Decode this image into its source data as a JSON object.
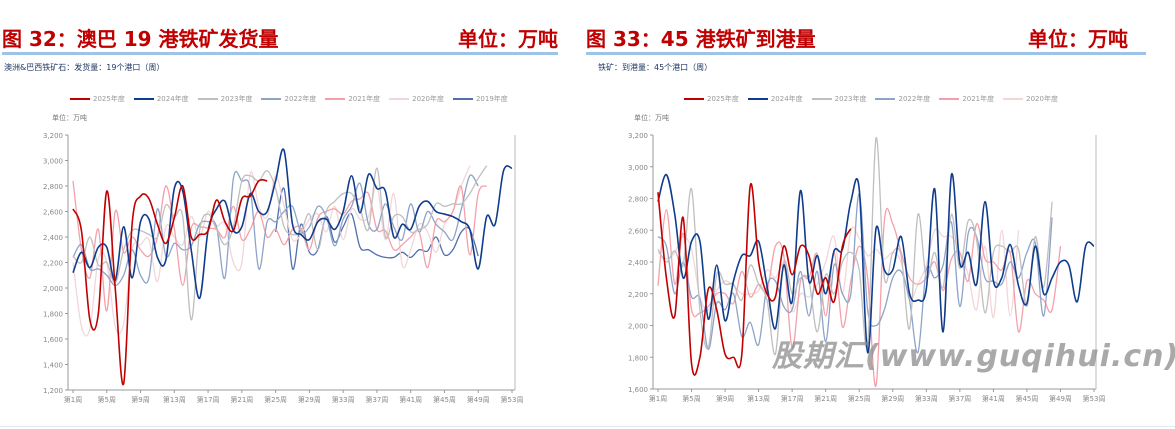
{
  "watermark": "股期汇(www.guqihui.cn)",
  "colors": {
    "2025年度": "#c00000",
    "2024年度": "#0f3c8c",
    "2023年度": "#bfbfbf",
    "2022年度": "#8ea3c8",
    "2021年度": "#f4a0aa",
    "2020年度": "#f2d6d8",
    "2019年度": "#4f6fad"
  },
  "chart_data": [
    {
      "type": "line",
      "figure_title": "图 32：澳巴 19 港铁矿发货量",
      "unit_title": "单位：万吨",
      "title": "澳洲&巴西铁矿石：发货量：19个港口（周）",
      "ylabel": "单位：万吨",
      "ylim": [
        1200,
        3200
      ],
      "yticks": [
        "1,200",
        "1,400",
        "1,600",
        "1,800",
        "2,000",
        "2,200",
        "2,400",
        "2,600",
        "2,800",
        "3,000",
        "3,200"
      ],
      "ytick_values": [
        1200,
        1400,
        1600,
        1800,
        2000,
        2200,
        2400,
        2600,
        2800,
        3000,
        3200
      ],
      "xlim": [
        1,
        53
      ],
      "xticks": [
        "第1周",
        "第5周",
        "第9周",
        "第13周",
        "第17周",
        "第21周",
        "第25周",
        "第29周",
        "第33周",
        "第37周",
        "第41周",
        "第45周",
        "第49周",
        "第53周"
      ],
      "xtick_values": [
        1,
        5,
        9,
        13,
        17,
        21,
        25,
        29,
        33,
        37,
        41,
        45,
        49,
        53
      ],
      "legend": "top",
      "series": [
        {
          "name": "2025年度",
          "values": [
            2620,
            2450,
            1750,
            1800,
            2760,
            2000,
            1250,
            2500,
            2720,
            2700,
            2500,
            2350,
            2550,
            2800,
            2400,
            2420,
            2450,
            2690,
            2520,
            2450,
            2700,
            2720,
            2840,
            2840
          ]
        },
        {
          "name": "2024年度",
          "values": [
            2120,
            2280,
            2160,
            2320,
            2320,
            2060,
            2480,
            2080,
            2520,
            2540,
            2240,
            2220,
            2780,
            2760,
            2300,
            1920,
            2450,
            2620,
            2680,
            2450,
            2480,
            2740,
            2600,
            2600,
            2840,
            3080,
            2500,
            2420,
            2380,
            2520,
            2540,
            2460,
            2600,
            2880,
            2590,
            2890,
            2780,
            2760,
            2400,
            2500,
            2460,
            2640,
            2680,
            2600,
            2580,
            2560,
            2520,
            2460,
            2150,
            2560,
            2500,
            2920,
            2940
          ]
        },
        {
          "name": "2023年度",
          "values": [
            2250,
            2200,
            2400,
            2180,
            2200,
            2040,
            2300,
            2450,
            2450,
            2420,
            2400,
            2650,
            2560,
            2560,
            1750,
            2450,
            2580,
            2460,
            2340,
            2480,
            2840,
            2880,
            2840,
            2920,
            2780,
            2480,
            2420,
            2440,
            2580,
            2300,
            2600,
            2680,
            2740,
            2740,
            2620,
            2460,
            2940,
            2400,
            2560,
            2560,
            2440,
            2460,
            2500,
            2660,
            2640,
            2660,
            2660,
            2740,
            2860,
            2960
          ]
        },
        {
          "name": "2022年度",
          "values": [
            2240,
            2340,
            2150,
            2150,
            2100,
            2020,
            2100,
            2300,
            2100,
            2080,
            2620,
            2250,
            2350,
            2300,
            2330,
            2500,
            2520,
            2480,
            2080,
            2860,
            2840,
            2780,
            2150,
            2520,
            2520,
            2600,
            2640,
            2440,
            2480,
            2640,
            2560,
            2330,
            2540,
            2640,
            2820,
            2500,
            2460,
            2660,
            2480,
            2380,
            2660,
            2440,
            2600,
            2500,
            2440,
            2380,
            2620,
            2880,
            2800
          ]
        },
        {
          "name": "2021年度",
          "values": [
            2840,
            2300,
            2080,
            2460,
            1820,
            2600,
            2280,
            2400,
            2300,
            2250,
            2400,
            2800,
            2470,
            2020,
            2470,
            2480,
            2470,
            2460,
            2400,
            2640,
            2380,
            2460,
            2600,
            2400,
            2460,
            2340,
            2460,
            2470,
            2300,
            2550,
            2600,
            2620,
            2580,
            2680,
            2700,
            2740,
            2460,
            2450,
            2300,
            2340,
            2400,
            2440,
            2160,
            2520,
            2520,
            2600,
            2790,
            2260,
            2740,
            2800
          ]
        },
        {
          "name": "2020年度",
          "values": [
            2200,
            1700,
            1680,
            2230,
            2200,
            1700,
            1720,
            2300,
            2340,
            2380,
            2050,
            2480,
            2400,
            2340,
            2560,
            2400,
            2600,
            2490,
            2500,
            2200,
            2200,
            2900,
            2640,
            2560,
            2880,
            2640,
            2380,
            2420,
            2540,
            2580,
            2440,
            2640,
            2380,
            2620,
            2540,
            2560,
            2800,
            2380,
            2740,
            2180,
            2300,
            2500,
            2440,
            2280,
            2500,
            2600,
            2800,
            2960
          ]
        },
        {
          "name": "2019年度",
          "values": [
            null,
            null,
            null,
            null,
            null,
            null,
            null,
            null,
            null,
            null,
            null,
            null,
            null,
            null,
            null,
            null,
            null,
            null,
            null,
            null,
            null,
            null,
            null,
            null,
            2440,
            2780,
            2150,
            2500,
            2280,
            2300,
            2560,
            2360,
            2480,
            2580,
            2320,
            2300,
            2260,
            2240,
            2240,
            2280,
            2240,
            2300,
            2290,
            2400,
            2260,
            2300,
            2440,
            2460,
            2250
          ]
        }
      ]
    },
    {
      "type": "line",
      "figure_title": "图 33：45 港铁矿到港量",
      "unit_title": "单位：万吨",
      "title": "铁矿：到港量：45个港口（周）",
      "ylabel": "单位：万吨",
      "ylim": [
        1600,
        3200
      ],
      "yticks": [
        "1,600",
        "1,800",
        "2,000",
        "2,200",
        "2,400",
        "2,600",
        "2,800",
        "3,000",
        "3,200"
      ],
      "ytick_values": [
        1600,
        1800,
        2000,
        2200,
        2400,
        2600,
        2800,
        3000,
        3200
      ],
      "xlim": [
        1,
        53
      ],
      "xticks": [
        "第1周",
        "第5周",
        "第9周",
        "第13周",
        "第17周",
        "第21周",
        "第25周",
        "第29周",
        "第33周",
        "第37周",
        "第41周",
        "第45周",
        "第49周",
        "第53周"
      ],
      "xtick_values": [
        1,
        5,
        9,
        13,
        17,
        21,
        25,
        29,
        33,
        37,
        41,
        45,
        49,
        53
      ],
      "legend": "top",
      "series": [
        {
          "name": "2025年度",
          "values": [
            2840,
            2300,
            2060,
            2680,
            1760,
            1800,
            2230,
            2100,
            1820,
            1800,
            1820,
            2880,
            2400,
            2200,
            2180,
            2500,
            2320,
            2500,
            2440,
            2200,
            2300,
            2150,
            2500,
            2610
          ]
        },
        {
          "name": "2024年度",
          "values": [
            2780,
            2950,
            2700,
            2300,
            2530,
            2530,
            2040,
            2380,
            2030,
            2280,
            2440,
            2440,
            2530,
            2250,
            1980,
            2380,
            2150,
            2850,
            2280,
            2440,
            2200,
            2470,
            2480,
            2780,
            2860,
            1830,
            2610,
            2350,
            2350,
            2560,
            2200,
            2160,
            2230,
            2860,
            1960,
            2950,
            2390,
            2460,
            2260,
            2780,
            2280,
            2300,
            2510,
            2250,
            2140,
            2500,
            2200,
            2300,
            2400,
            2380,
            2150,
            2500,
            2500
          ]
        },
        {
          "name": "2023年度",
          "values": [
            2480,
            2400,
            2470,
            2380,
            2860,
            2100,
            1860,
            2320,
            2260,
            2260,
            2160,
            2380,
            2260,
            2160,
            1820,
            2400,
            2200,
            2300,
            2280,
            1960,
            2320,
            2200,
            2400,
            2460,
            2350,
            1880,
            3180,
            2300,
            2460,
            2440,
            1980,
            2700,
            2300,
            2460,
            2240,
            2700,
            2360,
            2660,
            2540,
            2080,
            2460,
            2500,
            2460,
            2480,
            2120,
            2560,
            2240,
            2780
          ]
        },
        {
          "name": "2022年度",
          "values": [
            2560,
            2500,
            2200,
            2400,
            2180,
            2170,
            1850,
            2140,
            2100,
            2200,
            1930,
            2020,
            1880,
            2250,
            2280,
            2120,
            2100,
            2340,
            2060,
            2340,
            1900,
            2380,
            2200,
            2200,
            2830,
            2100,
            2000,
            2100,
            2300,
            2340,
            2160,
            1830,
            2350,
            2300,
            2380,
            2650,
            2120,
            2580,
            2560,
            2300,
            2280,
            2260,
            2400,
            2300,
            2460,
            2520,
            2060,
            2680
          ]
        },
        {
          "name": "2021年度",
          "values": [
            2250,
            2730,
            2260,
            2580,
            2100,
            2080,
            2120,
            2200,
            2200,
            2140,
            2340,
            2180,
            2260,
            2220,
            2500,
            2440,
            1860,
            2280,
            2300,
            2450,
            2060,
            2460,
            1990,
            2280,
            2500,
            2300,
            1620,
            2660,
            2640,
            2460,
            2300,
            2260,
            2300,
            2400,
            2220,
            2420,
            2460,
            2280,
            2640,
            2420,
            2400,
            2350,
            2460,
            1960,
            2280,
            2200,
            2160,
            2100,
            2500
          ]
        },
        {
          "name": "2020年度",
          "values": [
            2460,
            2420,
            2460,
            2560,
            2480,
            2180,
            2100,
            2220,
            2280,
            2250,
            2200,
            2200,
            2220,
            2350,
            2300,
            2380,
            2090,
            2200,
            2180,
            2260,
            2400,
            2560,
            2200,
            2600,
            2550,
            2440,
            2480,
            2420,
            2460,
            2400,
            2160,
            2260,
            2380,
            2600,
            2560,
            2560,
            2460,
            2320,
            2100,
            2500,
            2050,
            2600,
            2060,
            2600
          ]
        }
      ]
    }
  ]
}
